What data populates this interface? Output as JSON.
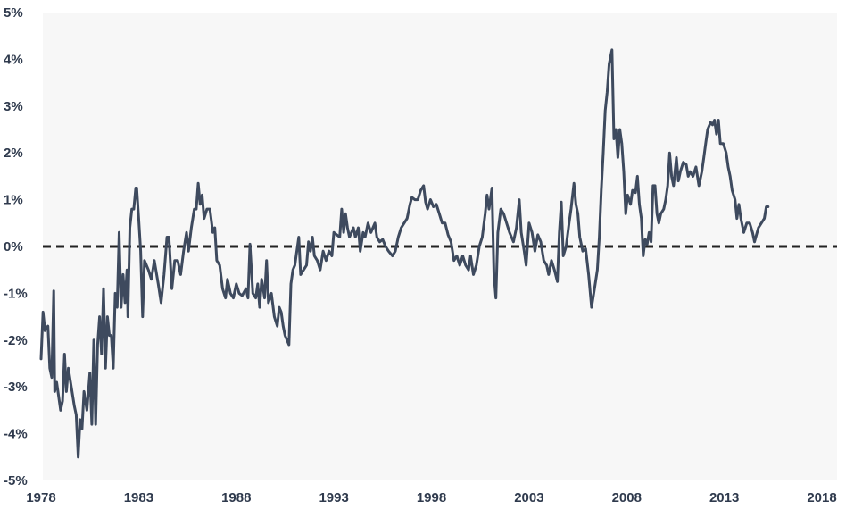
{
  "chart_data": {
    "type": "line",
    "title": "",
    "xlabel": "",
    "ylabel": "",
    "xlim": [
      1978,
      2018.4
    ],
    "ylim": [
      -5,
      5
    ],
    "x_ticks": [
      1978,
      1983,
      1988,
      1993,
      1998,
      2003,
      2008,
      2013,
      2018
    ],
    "x_tick_labels": [
      "1978",
      "1983",
      "1988",
      "1993",
      "1998",
      "2003",
      "2008",
      "2013",
      "2018"
    ],
    "y_ticks": [
      5,
      4,
      3,
      2,
      1,
      0,
      -1,
      -2,
      -3,
      -4,
      -5
    ],
    "y_tick_labels": [
      "5%",
      "4%",
      "3%",
      "2%",
      "1%",
      "0%",
      "-1%",
      "-2%",
      "-3%",
      "-4%",
      "-5%"
    ],
    "grid": false,
    "reference_line": {
      "y": 0,
      "style": "dashed"
    },
    "series_color": "#3e4a5e",
    "series": [
      {
        "name": "",
        "points": [
          [
            1978.0,
            -2.4
          ],
          [
            1978.1,
            -1.4
          ],
          [
            1978.2,
            -1.8
          ],
          [
            1978.35,
            -1.7
          ],
          [
            1978.45,
            -2.6
          ],
          [
            1978.55,
            -2.8
          ],
          [
            1978.65,
            -0.95
          ],
          [
            1978.7,
            -3.1
          ],
          [
            1978.8,
            -2.9
          ],
          [
            1978.9,
            -3.2
          ],
          [
            1979.0,
            -3.5
          ],
          [
            1979.1,
            -3.3
          ],
          [
            1979.2,
            -2.3
          ],
          [
            1979.3,
            -3.1
          ],
          [
            1979.4,
            -2.6
          ],
          [
            1979.55,
            -3.0
          ],
          [
            1979.7,
            -3.4
          ],
          [
            1979.8,
            -3.6
          ],
          [
            1979.9,
            -4.5
          ],
          [
            1980.0,
            -3.7
          ],
          [
            1980.1,
            -3.9
          ],
          [
            1980.2,
            -3.1
          ],
          [
            1980.35,
            -3.5
          ],
          [
            1980.5,
            -2.7
          ],
          [
            1980.6,
            -3.8
          ],
          [
            1980.7,
            -2.0
          ],
          [
            1980.8,
            -3.8
          ],
          [
            1980.9,
            -2.1
          ],
          [
            1981.0,
            -1.5
          ],
          [
            1981.1,
            -2.3
          ],
          [
            1981.2,
            -0.9
          ],
          [
            1981.3,
            -2.6
          ],
          [
            1981.4,
            -1.5
          ],
          [
            1981.5,
            -1.9
          ],
          [
            1981.6,
            -1.9
          ],
          [
            1981.7,
            -2.6
          ],
          [
            1981.8,
            -1.0
          ],
          [
            1981.9,
            -1.3
          ],
          [
            1982.0,
            0.3
          ],
          [
            1982.1,
            -1.3
          ],
          [
            1982.2,
            -0.6
          ],
          [
            1982.3,
            -1.2
          ],
          [
            1982.4,
            -0.5
          ],
          [
            1982.45,
            -1.5
          ],
          [
            1982.55,
            0.4
          ],
          [
            1982.65,
            0.8
          ],
          [
            1982.75,
            0.8
          ],
          [
            1982.85,
            1.25
          ],
          [
            1982.9,
            1.25
          ],
          [
            1983.0,
            0.6
          ],
          [
            1983.1,
            -0.1
          ],
          [
            1983.2,
            -1.5
          ],
          [
            1983.3,
            -0.3
          ],
          [
            1983.5,
            -0.5
          ],
          [
            1983.65,
            -0.7
          ],
          [
            1983.8,
            -0.3
          ],
          [
            1984.0,
            -0.8
          ],
          [
            1984.15,
            -1.2
          ],
          [
            1984.3,
            -0.6
          ],
          [
            1984.45,
            0.2
          ],
          [
            1984.55,
            0.2
          ],
          [
            1984.7,
            -0.9
          ],
          [
            1984.85,
            -0.3
          ],
          [
            1985.0,
            -0.3
          ],
          [
            1985.15,
            -0.6
          ],
          [
            1985.3,
            -0.1
          ],
          [
            1985.45,
            0.3
          ],
          [
            1985.55,
            -0.1
          ],
          [
            1985.7,
            0.4
          ],
          [
            1985.85,
            0.8
          ],
          [
            1985.95,
            0.8
          ],
          [
            1986.05,
            1.35
          ],
          [
            1986.15,
            0.9
          ],
          [
            1986.25,
            1.1
          ],
          [
            1986.35,
            0.6
          ],
          [
            1986.5,
            0.8
          ],
          [
            1986.65,
            0.8
          ],
          [
            1986.8,
            0.3
          ],
          [
            1986.9,
            0.4
          ],
          [
            1987.0,
            -0.3
          ],
          [
            1987.15,
            -0.4
          ],
          [
            1987.3,
            -0.9
          ],
          [
            1987.45,
            -1.1
          ],
          [
            1987.55,
            -0.7
          ],
          [
            1987.7,
            -1.0
          ],
          [
            1987.85,
            -1.1
          ],
          [
            1988.0,
            -0.8
          ],
          [
            1988.15,
            -1.0
          ],
          [
            1988.3,
            -1.05
          ],
          [
            1988.5,
            -0.9
          ],
          [
            1988.6,
            -1.1
          ],
          [
            1988.7,
            0.05
          ],
          [
            1988.85,
            -1.0
          ],
          [
            1989.0,
            -1.1
          ],
          [
            1989.1,
            -0.8
          ],
          [
            1989.2,
            -1.3
          ],
          [
            1989.3,
            -0.7
          ],
          [
            1989.45,
            -1.1
          ],
          [
            1989.55,
            -0.3
          ],
          [
            1989.65,
            -1.2
          ],
          [
            1989.8,
            -1.0
          ],
          [
            1989.95,
            -1.5
          ],
          [
            1990.1,
            -1.7
          ],
          [
            1990.2,
            -1.3
          ],
          [
            1990.3,
            -1.4
          ],
          [
            1990.4,
            -1.7
          ],
          [
            1990.5,
            -1.9
          ],
          [
            1990.6,
            -2.0
          ],
          [
            1990.7,
            -2.1
          ],
          [
            1990.8,
            -0.8
          ],
          [
            1990.9,
            -0.5
          ],
          [
            1991.0,
            -0.4
          ],
          [
            1991.1,
            -0.1
          ],
          [
            1991.2,
            0.2
          ],
          [
            1991.3,
            -0.6
          ],
          [
            1991.45,
            -0.5
          ],
          [
            1991.6,
            -0.4
          ],
          [
            1991.7,
            0.1
          ],
          [
            1991.8,
            -0.1
          ],
          [
            1991.9,
            0.2
          ],
          [
            1992.0,
            -0.2
          ],
          [
            1992.15,
            -0.3
          ],
          [
            1992.3,
            -0.5
          ],
          [
            1992.45,
            -0.1
          ],
          [
            1992.6,
            -0.3
          ],
          [
            1992.75,
            -0.1
          ],
          [
            1992.9,
            -0.2
          ],
          [
            1993.0,
            0.3
          ],
          [
            1993.15,
            0.25
          ],
          [
            1993.3,
            0.2
          ],
          [
            1993.4,
            0.8
          ],
          [
            1993.5,
            0.3
          ],
          [
            1993.6,
            0.7
          ],
          [
            1993.7,
            0.4
          ],
          [
            1993.8,
            0.2
          ],
          [
            1993.9,
            0.3
          ],
          [
            1994.0,
            0.4
          ],
          [
            1994.1,
            0.2
          ],
          [
            1994.25,
            0.4
          ],
          [
            1994.35,
            -0.1
          ],
          [
            1994.5,
            0.3
          ],
          [
            1994.6,
            0.2
          ],
          [
            1994.75,
            0.5
          ],
          [
            1994.9,
            0.3
          ],
          [
            1995.0,
            0.4
          ],
          [
            1995.1,
            0.5
          ],
          [
            1995.2,
            0.2
          ],
          [
            1995.35,
            0.1
          ],
          [
            1995.5,
            0.15
          ],
          [
            1995.65,
            0.0
          ],
          [
            1995.8,
            -0.1
          ],
          [
            1996.0,
            -0.2
          ],
          [
            1996.15,
            -0.1
          ],
          [
            1996.3,
            0.2
          ],
          [
            1996.45,
            0.4
          ],
          [
            1996.6,
            0.5
          ],
          [
            1996.75,
            0.6
          ],
          [
            1996.9,
            0.9
          ],
          [
            1997.0,
            1.05
          ],
          [
            1997.15,
            1.0
          ],
          [
            1997.3,
            1.0
          ],
          [
            1997.45,
            1.2
          ],
          [
            1997.6,
            1.3
          ],
          [
            1997.7,
            0.95
          ],
          [
            1997.8,
            0.8
          ],
          [
            1997.95,
            1.0
          ],
          [
            1998.1,
            0.85
          ],
          [
            1998.25,
            0.9
          ],
          [
            1998.4,
            0.7
          ],
          [
            1998.55,
            0.5
          ],
          [
            1998.7,
            0.5
          ],
          [
            1998.85,
            0.25
          ],
          [
            1999.0,
            0.1
          ],
          [
            1999.15,
            -0.3
          ],
          [
            1999.3,
            -0.2
          ],
          [
            1999.45,
            -0.4
          ],
          [
            1999.6,
            -0.2
          ],
          [
            1999.75,
            -0.4
          ],
          [
            1999.9,
            -0.5
          ],
          [
            2000.0,
            -0.2
          ],
          [
            2000.15,
            -0.6
          ],
          [
            2000.3,
            -0.4
          ],
          [
            2000.45,
            0.0
          ],
          [
            2000.6,
            0.2
          ],
          [
            2000.75,
            0.7
          ],
          [
            2000.85,
            1.1
          ],
          [
            2000.95,
            0.8
          ],
          [
            2001.1,
            1.25
          ],
          [
            2001.2,
            -0.6
          ],
          [
            2001.3,
            -1.1
          ],
          [
            2001.4,
            0.3
          ],
          [
            2001.55,
            0.8
          ],
          [
            2001.7,
            0.7
          ],
          [
            2001.85,
            0.5
          ],
          [
            2002.0,
            0.3
          ],
          [
            2002.2,
            0.1
          ],
          [
            2002.35,
            0.4
          ],
          [
            2002.5,
            1.0
          ],
          [
            2002.6,
            0.3
          ],
          [
            2002.75,
            -0.1
          ],
          [
            2002.85,
            -0.4
          ],
          [
            2003.0,
            0.5
          ],
          [
            2003.15,
            0.3
          ],
          [
            2003.3,
            -0.1
          ],
          [
            2003.45,
            0.25
          ],
          [
            2003.6,
            0.1
          ],
          [
            2003.75,
            -0.3
          ],
          [
            2003.9,
            -0.4
          ],
          [
            2004.0,
            -0.6
          ],
          [
            2004.15,
            -0.3
          ],
          [
            2004.3,
            -0.5
          ],
          [
            2004.45,
            -0.75
          ],
          [
            2004.55,
            0.3
          ],
          [
            2004.65,
            0.95
          ],
          [
            2004.75,
            -0.2
          ],
          [
            2004.9,
            0.0
          ],
          [
            2005.05,
            0.5
          ],
          [
            2005.15,
            0.8
          ],
          [
            2005.3,
            1.35
          ],
          [
            2005.4,
            0.9
          ],
          [
            2005.5,
            0.7
          ],
          [
            2005.6,
            0.2
          ],
          [
            2005.75,
            -0.1
          ],
          [
            2005.9,
            -0.05
          ],
          [
            2006.05,
            -0.6
          ],
          [
            2006.2,
            -1.3
          ],
          [
            2006.35,
            -0.9
          ],
          [
            2006.5,
            -0.5
          ],
          [
            2006.6,
            0.2
          ],
          [
            2006.7,
            1.2
          ],
          [
            2006.8,
            2.0
          ],
          [
            2006.9,
            2.9
          ],
          [
            2007.0,
            3.3
          ],
          [
            2007.1,
            3.9
          ],
          [
            2007.25,
            4.2
          ],
          [
            2007.35,
            2.3
          ],
          [
            2007.45,
            2.5
          ],
          [
            2007.55,
            1.9
          ],
          [
            2007.65,
            2.5
          ],
          [
            2007.75,
            2.2
          ],
          [
            2007.85,
            1.6
          ],
          [
            2007.95,
            0.7
          ],
          [
            2008.05,
            1.1
          ],
          [
            2008.2,
            0.9
          ],
          [
            2008.3,
            1.2
          ],
          [
            2008.45,
            1.15
          ],
          [
            2008.55,
            1.5
          ],
          [
            2008.65,
            0.9
          ],
          [
            2008.75,
            0.6
          ],
          [
            2008.85,
            -0.2
          ],
          [
            2008.95,
            0.15
          ],
          [
            2009.05,
            0.05
          ],
          [
            2009.15,
            0.3
          ],
          [
            2009.25,
            0.1
          ],
          [
            2009.35,
            1.3
          ],
          [
            2009.45,
            1.3
          ],
          [
            2009.55,
            0.7
          ],
          [
            2009.65,
            0.5
          ],
          [
            2009.75,
            0.7
          ],
          [
            2009.9,
            0.8
          ],
          [
            2010.0,
            1.0
          ],
          [
            2010.1,
            1.3
          ],
          [
            2010.2,
            2.0
          ],
          [
            2010.3,
            1.5
          ],
          [
            2010.4,
            1.3
          ],
          [
            2010.55,
            1.9
          ],
          [
            2010.65,
            1.4
          ],
          [
            2010.75,
            1.6
          ],
          [
            2010.9,
            1.8
          ],
          [
            2011.05,
            1.75
          ],
          [
            2011.15,
            1.5
          ],
          [
            2011.25,
            1.6
          ],
          [
            2011.4,
            1.5
          ],
          [
            2011.55,
            1.7
          ],
          [
            2011.7,
            1.3
          ],
          [
            2011.85,
            1.6
          ],
          [
            2011.95,
            1.9
          ],
          [
            2012.05,
            2.2
          ],
          [
            2012.15,
            2.5
          ],
          [
            2012.3,
            2.65
          ],
          [
            2012.4,
            2.6
          ],
          [
            2012.5,
            2.7
          ],
          [
            2012.6,
            2.4
          ],
          [
            2012.7,
            2.7
          ],
          [
            2012.8,
            2.2
          ],
          [
            2012.95,
            2.2
          ],
          [
            2013.1,
            2.0
          ],
          [
            2013.2,
            1.7
          ],
          [
            2013.3,
            1.5
          ],
          [
            2013.4,
            1.2
          ],
          [
            2013.55,
            1.0
          ],
          [
            2013.65,
            0.6
          ],
          [
            2013.75,
            0.9
          ],
          [
            2013.85,
            0.6
          ],
          [
            2014.0,
            0.3
          ],
          [
            2014.15,
            0.5
          ],
          [
            2014.3,
            0.5
          ],
          [
            2014.45,
            0.3
          ],
          [
            2014.55,
            0.1
          ],
          [
            2014.65,
            0.25
          ],
          [
            2014.75,
            0.4
          ],
          [
            2014.9,
            0.5
          ],
          [
            2015.05,
            0.6
          ],
          [
            2015.15,
            0.85
          ],
          [
            2015.25,
            0.85
          ]
        ]
      }
    ]
  }
}
